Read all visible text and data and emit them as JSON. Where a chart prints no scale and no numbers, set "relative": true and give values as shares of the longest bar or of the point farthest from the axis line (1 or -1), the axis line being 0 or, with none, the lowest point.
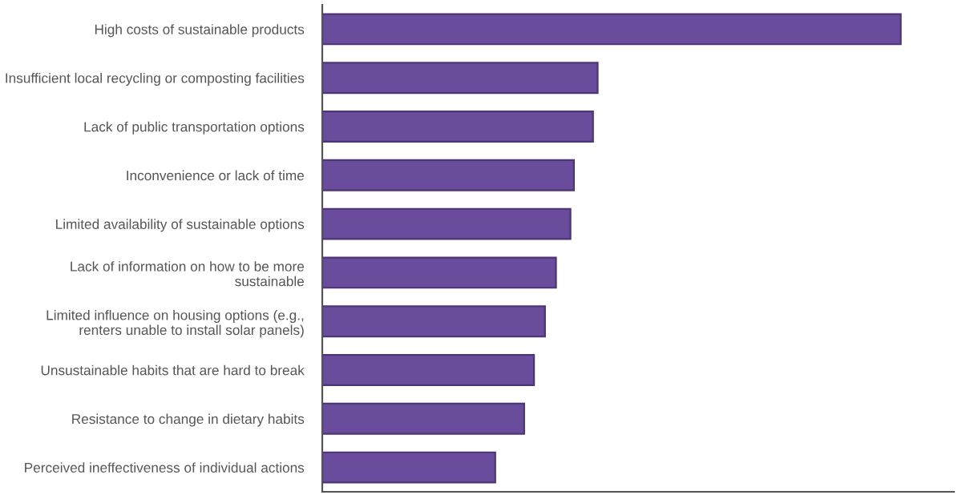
{
  "chart_data": {
    "type": "bar",
    "orientation": "horizontal",
    "relative": true,
    "color": "#6a4c9c",
    "categories": [
      "High costs of sustainable products",
      "Insufficient local recycling or composting facilities",
      "Lack of public transportation options",
      "Inconvenience or lack of time",
      "Limited availability of sustainable options",
      "Lack of information on how to be more sustainable",
      "Limited influence on housing options (e.g., renters unable to install solar panels)",
      "Unsustainable habits that are hard to break",
      "Resistance to change in dietary habits",
      "Perceived ineffectiveness of individual actions"
    ],
    "values": [
      1,
      0.476,
      0.468,
      0.435,
      0.429,
      0.404,
      0.385,
      0.366,
      0.349,
      0.299
    ],
    "grid": false,
    "legend": false
  }
}
